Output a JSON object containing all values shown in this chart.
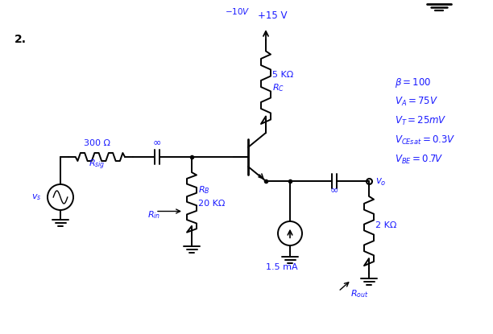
{
  "background_color": "#ffffff",
  "line_color": "#000000",
  "text_color": "#1a1aff",
  "figsize": [
    6.12,
    4.15
  ],
  "dpi": 100,
  "number": "2.",
  "vcc": "+15 V",
  "rc_val": "5 KΩ",
  "rc_label": "R_C",
  "rsig_val": "300 Ω",
  "rb_val": "20 KΩ",
  "rl_val": "2 KΩ",
  "isrc_val": "1.5 mA",
  "inf": "∞",
  "top_label": "− 10V",
  "params": [
    "β = 100",
    "V_A = 75V",
    "V_T = 25mV",
    "V_CEsat = 0.3V",
    "V_BE = 0.7V"
  ]
}
